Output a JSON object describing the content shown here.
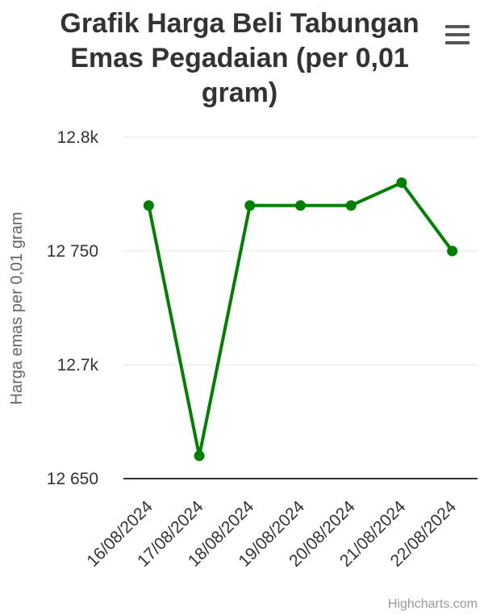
{
  "chart_data": {
    "type": "line",
    "title_lines": [
      "Grafik Harga Beli Tabungan",
      "Emas Pegadaian (per 0,01",
      "gram)"
    ],
    "ylabel": "Harga emas per 0,01 gram",
    "xlabel": "",
    "categories": [
      "16/08/2024",
      "17/08/2024",
      "18/08/2024",
      "19/08/2024",
      "20/08/2024",
      "21/08/2024",
      "22/08/2024"
    ],
    "series": [
      {
        "values": [
          12770,
          12660,
          12770,
          12770,
          12770,
          12780,
          12750
        ],
        "color": "#008000"
      }
    ],
    "ylim": [
      12650,
      12800
    ],
    "yticks": [
      12650,
      12700,
      12750,
      12800
    ],
    "ytick_labels": [
      "12 650",
      "12.7k",
      "12 750",
      "12.8k"
    ],
    "grid": true,
    "legend": "none"
  },
  "credits": "Highcharts.com",
  "menu_icon": "hamburger-menu-icon"
}
